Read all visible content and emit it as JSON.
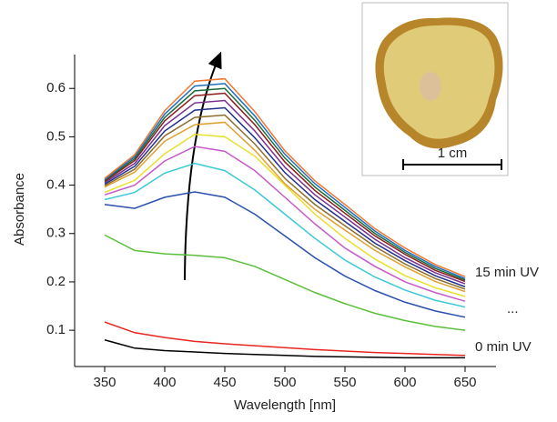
{
  "chart_data": {
    "type": "line",
    "x_label": "Wavelength [nm]",
    "y_label": "Absorbance",
    "x": [
      350,
      375,
      400,
      425,
      450,
      475,
      500,
      525,
      550,
      575,
      600,
      625,
      650
    ],
    "xlim": [
      325,
      675
    ],
    "xticks": [
      350,
      400,
      450,
      500,
      550,
      600,
      650
    ],
    "ylim": [
      0.025,
      0.67
    ],
    "yticks": [
      0.1,
      0.2,
      0.3,
      0.4,
      0.5,
      0.6
    ],
    "series": [
      {
        "color": "#000000",
        "values": [
          0.08,
          0.063,
          0.058,
          0.055,
          0.052,
          0.05,
          0.048,
          0.046,
          0.045,
          0.044,
          0.043,
          0.043,
          0.043
        ]
      },
      {
        "color": "#e8261f",
        "values": [
          0.117,
          0.095,
          0.085,
          0.077,
          0.072,
          0.068,
          0.064,
          0.06,
          0.057,
          0.054,
          0.052,
          0.05,
          0.048
        ]
      },
      {
        "color": "#5cbf3a",
        "values": [
          0.297,
          0.265,
          0.258,
          0.255,
          0.25,
          0.232,
          0.205,
          0.178,
          0.155,
          0.135,
          0.12,
          0.108,
          0.1
        ]
      },
      {
        "color": "#2b4fae",
        "values": [
          0.36,
          0.352,
          0.375,
          0.386,
          0.375,
          0.34,
          0.295,
          0.25,
          0.212,
          0.182,
          0.158,
          0.14,
          0.127
        ]
      },
      {
        "color": "#3cc8d8",
        "values": [
          0.37,
          0.385,
          0.425,
          0.445,
          0.43,
          0.39,
          0.34,
          0.29,
          0.245,
          0.21,
          0.183,
          0.162,
          0.148
        ]
      },
      {
        "color": "#c55ac8",
        "values": [
          0.38,
          0.4,
          0.45,
          0.48,
          0.47,
          0.43,
          0.375,
          0.32,
          0.27,
          0.232,
          0.2,
          0.178,
          0.16
        ]
      },
      {
        "color": "#e8e02a",
        "values": [
          0.385,
          0.41,
          0.465,
          0.505,
          0.5,
          0.46,
          0.4,
          0.34,
          0.29,
          0.247,
          0.213,
          0.188,
          0.17
        ]
      },
      {
        "color": "#e0a030",
        "values": [
          0.396,
          0.427,
          0.491,
          0.525,
          0.53,
          0.472,
          0.403,
          0.35,
          0.307,
          0.265,
          0.231,
          0.201,
          0.18
        ]
      },
      {
        "color": "#8b6d2a",
        "values": [
          0.399,
          0.433,
          0.502,
          0.54,
          0.545,
          0.485,
          0.414,
          0.36,
          0.316,
          0.273,
          0.237,
          0.207,
          0.185
        ]
      },
      {
        "color": "#1f2f8f",
        "values": [
          0.402,
          0.439,
          0.512,
          0.555,
          0.56,
          0.498,
          0.426,
          0.37,
          0.325,
          0.28,
          0.244,
          0.213,
          0.19
        ]
      },
      {
        "color": "#7a2f8f",
        "values": [
          0.405,
          0.445,
          0.523,
          0.57,
          0.575,
          0.512,
          0.437,
          0.38,
          0.334,
          0.288,
          0.25,
          0.219,
          0.196
        ]
      },
      {
        "color": "#8b1a1a",
        "values": [
          0.408,
          0.451,
          0.533,
          0.585,
          0.59,
          0.525,
          0.448,
          0.389,
          0.342,
          0.295,
          0.257,
          0.224,
          0.201
        ]
      },
      {
        "color": "#1a6b3a",
        "values": [
          0.41,
          0.455,
          0.54,
          0.595,
          0.6,
          0.534,
          0.456,
          0.396,
          0.348,
          0.3,
          0.261,
          0.228,
          0.204
        ]
      },
      {
        "color": "#1f6fbf",
        "values": [
          0.412,
          0.459,
          0.547,
          0.605,
          0.61,
          0.543,
          0.464,
          0.403,
          0.354,
          0.305,
          0.265,
          0.232,
          0.207
        ]
      },
      {
        "color": "#f07830",
        "values": [
          0.414,
          0.463,
          0.554,
          0.615,
          0.62,
          0.552,
          0.471,
          0.409,
          0.36,
          0.31,
          0.27,
          0.236,
          0.211
        ]
      }
    ],
    "annotations": [
      "15 min UV",
      "...",
      "0 min UV"
    ],
    "inset_scale_label": "1 cm"
  }
}
